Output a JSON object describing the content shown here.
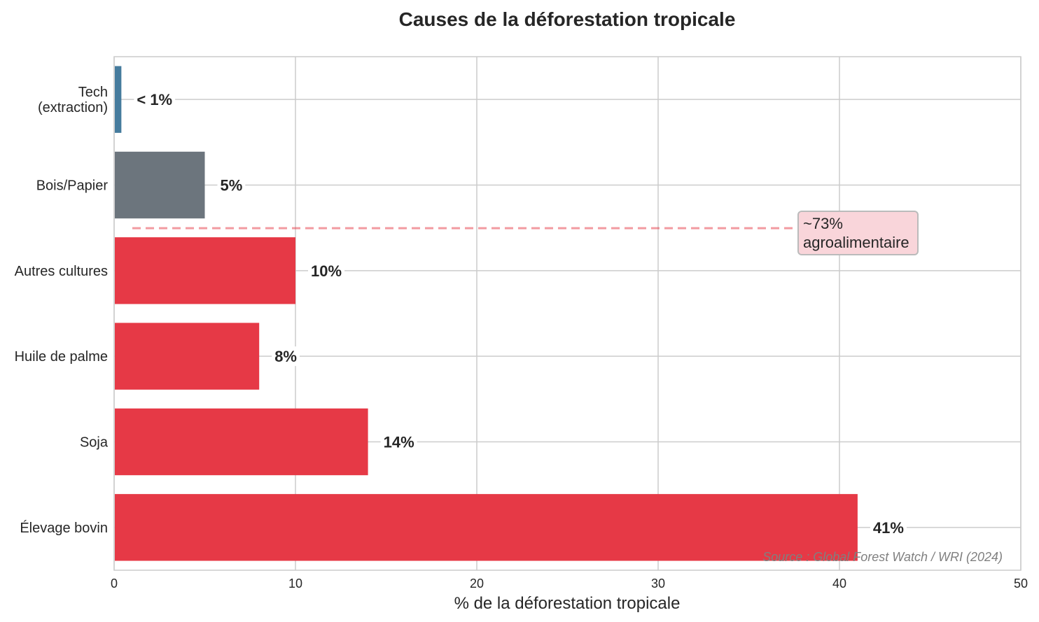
{
  "chart_data": {
    "type": "bar",
    "orientation": "horizontal",
    "title": "Causes de la déforestation tropicale",
    "xlabel": "% de la déforestation tropicale",
    "ylabel": "",
    "xlim": [
      0,
      50
    ],
    "xticks": [
      0,
      10,
      20,
      30,
      40,
      50
    ],
    "grid": true,
    "categories": [
      {
        "label": [
          "Tech",
          "(extraction)"
        ],
        "value": 0.4,
        "value_label": "< 1%",
        "color": "#457b9d"
      },
      {
        "label": [
          "Bois/Papier"
        ],
        "value": 5,
        "value_label": "5%",
        "color": "#6c757d"
      },
      {
        "label": [
          "Autres cultures"
        ],
        "value": 10,
        "value_label": "10%",
        "color": "#e63946"
      },
      {
        "label": [
          "Huile de palme"
        ],
        "value": 8,
        "value_label": "8%",
        "color": "#e63946"
      },
      {
        "label": [
          "Soja"
        ],
        "value": 14,
        "value_label": "14%",
        "color": "#e63946"
      },
      {
        "label": [
          "Élevage bovin"
        ],
        "value": 41,
        "value_label": "41%",
        "color": "#e63946"
      }
    ],
    "annotation": {
      "text": [
        "~73%",
        "agroalimentaire"
      ],
      "line_color": "#e63946",
      "box_fill": "#f9d5da"
    },
    "source": "Source : Global Forest Watch / WRI (2024)"
  }
}
